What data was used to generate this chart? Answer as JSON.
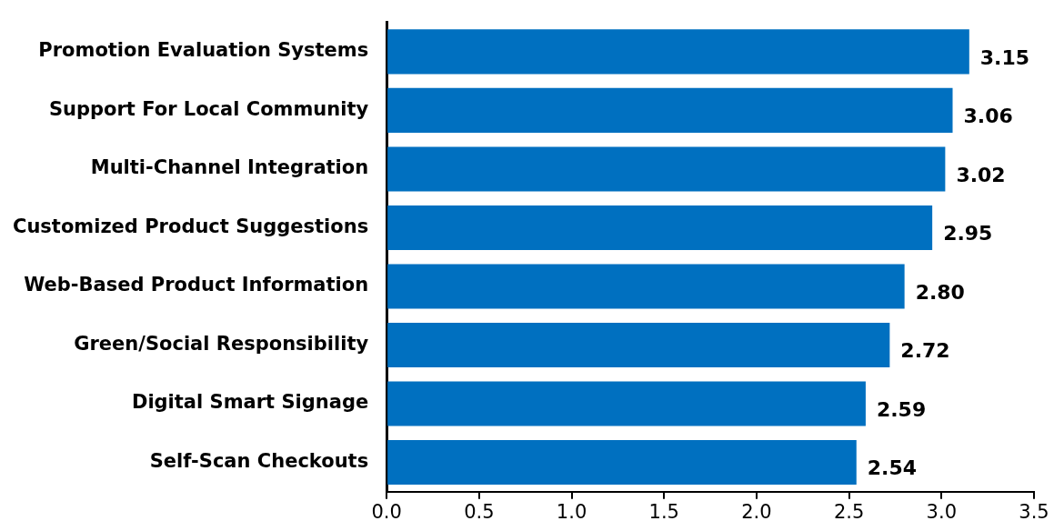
{
  "chart_data": {
    "type": "bar",
    "orientation": "horizontal",
    "categories": [
      "Promotion Evaluation Systems",
      "Support For Local Community",
      "Multi-Channel Integration",
      "Customized Product Suggestions",
      "Web-Based Product Information",
      "Green/Social Responsibility",
      "Digital Smart Signage",
      "Self-Scan Checkouts"
    ],
    "values": [
      3.15,
      3.06,
      3.02,
      2.95,
      2.8,
      2.72,
      2.59,
      2.54
    ],
    "value_labels": [
      "3.15",
      "3.06",
      "3.02",
      "2.95",
      "2.80",
      "2.72",
      "2.59",
      "2.54"
    ],
    "color": "#0070c0",
    "xlim": [
      0,
      3.5
    ],
    "xticks": [
      {
        "value": 0,
        "label": "0.0"
      },
      {
        "value": 0.5,
        "label": "0.5"
      },
      {
        "value": 1,
        "label": "1.0"
      },
      {
        "value": 1.5,
        "label": "1.5"
      },
      {
        "value": 2,
        "label": "2.0"
      },
      {
        "value": 2.5,
        "label": "2.5"
      },
      {
        "value": 3,
        "label": "3.0"
      },
      {
        "value": 3.5,
        "label": "3.5"
      }
    ],
    "grid": false,
    "legend": false
  }
}
